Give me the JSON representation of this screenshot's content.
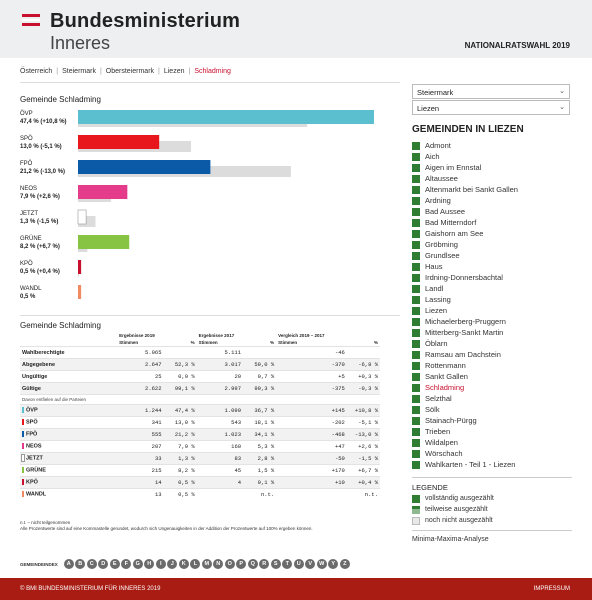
{
  "header": {
    "brand_line1": "Bundesministerium",
    "brand_line2": "Inneres",
    "election": "NATIONALRATSWAHL 2019"
  },
  "breadcrumb": [
    "Österreich",
    "Steiermark",
    "Obersteiermark",
    "Liezen",
    "Schladming"
  ],
  "chart_title": "Gemeinde Schladming",
  "chart_data": {
    "type": "bar",
    "orientation": "horizontal",
    "categories": [
      "ÖVP",
      "SPÖ",
      "FPÖ",
      "NEOS",
      "JETZT",
      "GRÜNE",
      "KPÖ",
      "WANDL"
    ],
    "labels": [
      "47,4 % (+10,8 %)",
      "13,0 % (-5,1 %)",
      "21,2 % (-13,0 %)",
      "7,9 % (+2,6 %)",
      "1,3 % (-1,5 %)",
      "8,2 % (+6,7 %)",
      "0,5 % (+0,4 %)",
      "0,5 %"
    ],
    "series": [
      {
        "name": "2019",
        "values": [
          47.4,
          13.0,
          21.2,
          7.9,
          1.3,
          8.2,
          0.5,
          0.5
        ]
      },
      {
        "name": "2017",
        "values": [
          36.7,
          18.1,
          34.1,
          5.3,
          2.8,
          1.5,
          0.1,
          null
        ]
      }
    ],
    "colors": [
      "#5bbfcf",
      "#e8171e",
      "#0a5aa8",
      "#e43b8a",
      "#ffffff",
      "#88c443",
      "#c8102e",
      "#f08a61"
    ],
    "color_2017": "#dcdcdc",
    "xlim": [
      0,
      47.4
    ]
  },
  "table_title": "Gemeinde Schladming",
  "table": {
    "head": {
      "g2019": "Ergebnisse 2019",
      "g2017": "Ergebnisse 2017",
      "gcmp": "Vergleich 2019 – 2017",
      "stimmen": "Stimmen",
      "pct": "%"
    },
    "rows": [
      {
        "label": "Wahlberechtigte",
        "v19": "5.065",
        "p19": "",
        "v17": "5.111",
        "p17": "",
        "dv": "-46",
        "dp": "",
        "shade": false
      },
      {
        "label": "Abgegebene",
        "v19": "2.647",
        "p19": "52,3 %",
        "v17": "3.017",
        "p17": "59,0 %",
        "dv": "-370",
        "dp": "-6,8 %",
        "shade": true
      },
      {
        "label": "Ungültige",
        "v19": "25",
        "p19": "0,9 %",
        "v17": "20",
        "p17": "0,7 %",
        "dv": "+5",
        "dp": "+0,3 %",
        "shade": false
      },
      {
        "label": "Gültige",
        "v19": "2.622",
        "p19": "99,1 %",
        "v17": "2.997",
        "p17": "99,3 %",
        "dv": "-375",
        "dp": "-0,3 %",
        "shade": true
      }
    ],
    "parties_note": "Davon entfielen auf die Parteien",
    "parties": [
      {
        "label": "ÖVP",
        "color": "#5bbfcf",
        "v19": "1.244",
        "p19": "47,4 %",
        "v17": "1.099",
        "p17": "36,7 %",
        "dv": "+145",
        "dp": "+10,8 %",
        "shade": true
      },
      {
        "label": "SPÖ",
        "color": "#e8171e",
        "v19": "341",
        "p19": "13,0 %",
        "v17": "543",
        "p17": "18,1 %",
        "dv": "-202",
        "dp": "-5,1 %",
        "shade": false
      },
      {
        "label": "FPÖ",
        "color": "#0a5aa8",
        "v19": "555",
        "p19": "21,2 %",
        "v17": "1.023",
        "p17": "34,1 %",
        "dv": "-468",
        "dp": "-13,0 %",
        "shade": true
      },
      {
        "label": "NEOS",
        "color": "#e43b8a",
        "v19": "207",
        "p19": "7,9 %",
        "v17": "160",
        "p17": "5,3 %",
        "dv": "+47",
        "dp": "+2,6 %",
        "shade": false
      },
      {
        "label": "JETZT",
        "color": "#ffffff",
        "v19": "33",
        "p19": "1,3 %",
        "v17": "83",
        "p17": "2,8 %",
        "dv": "-50",
        "dp": "-1,5 %",
        "shade": true
      },
      {
        "label": "GRÜNE",
        "color": "#88c443",
        "v19": "215",
        "p19": "8,2 %",
        "v17": "45",
        "p17": "1,5 %",
        "dv": "+170",
        "dp": "+6,7 %",
        "shade": false
      },
      {
        "label": "KPÖ",
        "color": "#c8102e",
        "v19": "14",
        "p19": "0,5 %",
        "v17": "4",
        "p17": "0,1 %",
        "dv": "+10",
        "dp": "+0,4 %",
        "shade": true
      },
      {
        "label": "WANDL",
        "color": "#f08a61",
        "v19": "13",
        "p19": "0,5 %",
        "v17": "",
        "p17": "n.t.",
        "dv": "",
        "dp": "n.t.",
        "shade": false
      }
    ]
  },
  "notes": {
    "nt": "n.t. – nicht teilgenommen",
    "rounding": "Alle Prozentwerte sind auf eine Kommastelle gerundet, wodurch sich Ungenauigkeiten in der Addition der Prozentwerte auf 100% ergeben können."
  },
  "sidebar": {
    "select_state": "Steiermark",
    "select_district": "Liezen",
    "title": "GEMEINDEN IN LIEZEN",
    "municipalities": [
      "Admont",
      "Aich",
      "Aigen im Ennstal",
      "Altaussee",
      "Altenmarkt bei Sankt Gallen",
      "Ardning",
      "Bad Aussee",
      "Bad Mitterndorf",
      "Gaishorn am See",
      "Gröbming",
      "Grundlsee",
      "Haus",
      "Irdning-Donnersbachtal",
      "Landl",
      "Lassing",
      "Liezen",
      "Michaelerberg-Pruggern",
      "Mitterberg-Sankt Martin",
      "Öblarn",
      "Ramsau am Dachstein",
      "Rottenmann",
      "Sankt Gallen",
      "Schladming",
      "Selzthal",
      "Sölk",
      "Stainach-Pürgg",
      "Trieben",
      "Wildalpen",
      "Wörschach",
      "Wahlkarten - Teil 1 - Liezen"
    ],
    "current": "Schladming",
    "legend_title": "LEGENDE",
    "legend": [
      {
        "label": "vollständig ausgezählt",
        "color": "#2f7d32"
      },
      {
        "label": "teilweise ausgezählt",
        "color": "#8fb98f"
      },
      {
        "label": "noch nicht ausgezählt",
        "color": "#e8e8e8"
      }
    ],
    "minmax": "Minima-Maxima-Analyse"
  },
  "index_label": "GEMEINDEINDEX",
  "index_letters": [
    "A",
    "B",
    "C",
    "D",
    "E",
    "F",
    "G",
    "H",
    "I",
    "J",
    "K",
    "L",
    "M",
    "N",
    "O",
    "P",
    "Q",
    "R",
    "S",
    "T",
    "U",
    "V",
    "W",
    "Y",
    "Z"
  ],
  "footer": {
    "copyright": "© BMI BUNDESMINISTERIUM FÜR INNERES 2019",
    "impressum": "IMPRESSUM"
  }
}
